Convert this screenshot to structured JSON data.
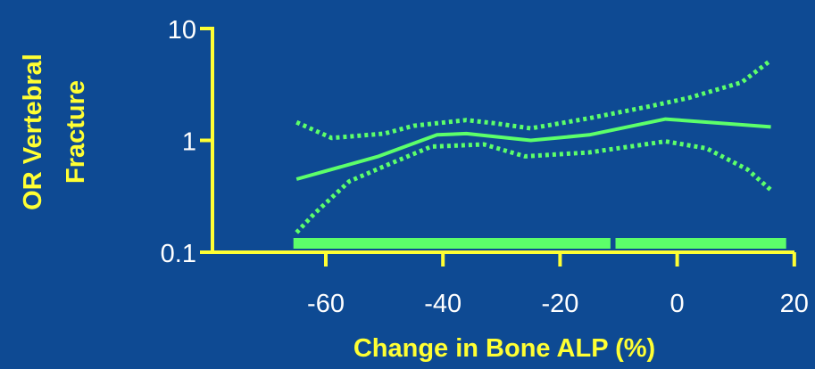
{
  "chart_data": {
    "type": "line",
    "xlabel": "Change in Bone ALP (%)",
    "ylabel_lines": [
      "OR Vertebral",
      "Fracture"
    ],
    "x_ticks": [
      -60,
      -40,
      -20,
      0,
      20
    ],
    "x_tick_labels": [
      "-60",
      "-40",
      "-20",
      "0",
      "20"
    ],
    "y_scale": "log",
    "y_ticks": [
      0.1,
      1,
      10
    ],
    "y_tick_labels": [
      "0.1",
      "1",
      "10"
    ],
    "xlim": [
      -70,
      20
    ],
    "ylim": [
      0.1,
      10
    ],
    "grid": false,
    "series": [
      {
        "role": "estimate",
        "style": "solid",
        "x": [
          -65,
          -51,
          -41,
          -36,
          -25,
          -15,
          -2,
          16
        ],
        "y": [
          0.45,
          0.72,
          1.12,
          1.15,
          1.0,
          1.12,
          1.55,
          1.32
        ]
      },
      {
        "role": "upper-ci",
        "style": "dotted",
        "x": [
          -65,
          -59,
          -50,
          -45,
          -36,
          -31,
          -25,
          -15,
          -5,
          2,
          11,
          16
        ],
        "y": [
          1.45,
          1.05,
          1.15,
          1.35,
          1.52,
          1.42,
          1.28,
          1.58,
          2.0,
          2.4,
          3.3,
          5.2
        ]
      },
      {
        "role": "lower-ci",
        "style": "dotted",
        "x": [
          -65,
          -62,
          -56,
          -49,
          -42,
          -33,
          -26,
          -15,
          -5,
          -2,
          5,
          12,
          16
        ],
        "y": [
          0.15,
          0.22,
          0.43,
          0.62,
          0.88,
          0.92,
          0.72,
          0.78,
          0.93,
          0.98,
          0.85,
          0.55,
          0.36
        ]
      }
    ],
    "rug_x": [
      -65,
      -64,
      -63,
      -62,
      -61,
      -60,
      -59,
      -58,
      -57,
      -56,
      -55,
      -54,
      -53,
      -52,
      -51,
      -50,
      -49,
      -48,
      -47,
      -46,
      -45,
      -44,
      -43,
      -42,
      -41,
      -40,
      -39,
      -38,
      -37,
      -36,
      -35,
      -34,
      -33,
      -32,
      -31,
      -30,
      -29,
      -28,
      -27,
      -26,
      -25,
      -24,
      -23,
      -22,
      -21,
      -20,
      -19,
      -18,
      -17,
      -16,
      -15,
      -14,
      -13,
      -12,
      -10,
      -9.5,
      -9,
      -8,
      -7,
      -6,
      -5,
      -4,
      -3.5,
      -3,
      -2,
      -1,
      -0.5,
      0,
      1,
      2,
      2.5,
      3,
      4,
      4.5,
      5,
      6,
      7,
      8,
      9,
      9.5,
      10,
      11,
      12,
      12.5,
      13,
      14,
      15,
      16,
      17,
      18
    ],
    "colors": {
      "background": "#0e4a93",
      "axis": "#ffff33",
      "series": "#5cff6a",
      "tick_text": "#ffffff",
      "title_text": "#ffff33"
    }
  }
}
